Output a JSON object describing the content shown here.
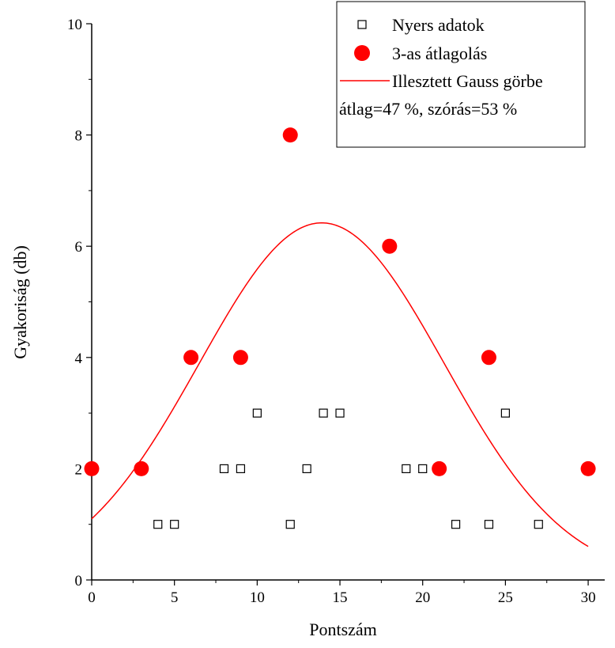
{
  "chart_data": {
    "type": "scatter",
    "title": "",
    "xlabel": "Pontszám",
    "ylabel": "Gyakoriság (db)",
    "xlim": [
      0,
      31
    ],
    "ylim": [
      0,
      10
    ],
    "x_ticks": [
      "0",
      "5",
      "10",
      "15",
      "20",
      "25",
      "30"
    ],
    "y_ticks": [
      "0",
      "2",
      "4",
      "6",
      "8",
      "10"
    ],
    "grid": false,
    "legend_position": "top-right",
    "series": [
      {
        "name": "Nyers adatok",
        "kind": "scatter",
        "marker": "open-square",
        "color": "#000000",
        "x": [
          4,
          5,
          8,
          9,
          10,
          12,
          13,
          14,
          15,
          19,
          20,
          22,
          24,
          25,
          27
        ],
        "y": [
          1,
          1,
          2,
          2,
          3,
          1,
          2,
          3,
          3,
          2,
          2,
          1,
          1,
          3,
          1
        ]
      },
      {
        "name": "3-as átlagolás",
        "kind": "scatter",
        "marker": "filled-circle",
        "color": "#ff0000",
        "x": [
          0,
          3,
          6,
          9,
          12,
          18,
          21,
          24,
          30
        ],
        "y": [
          2,
          2,
          4,
          4,
          8,
          6,
          2,
          4,
          2
        ]
      },
      {
        "name": "Illesztett Gauss görbe",
        "kind": "line",
        "color": "#ff0000",
        "gauss": {
          "amplitude": 6.42,
          "mean": 13.9,
          "sigma": 7.4
        },
        "x_range": [
          0,
          30
        ]
      }
    ],
    "annotation": "átlag=47 %, szórás=53 %"
  }
}
